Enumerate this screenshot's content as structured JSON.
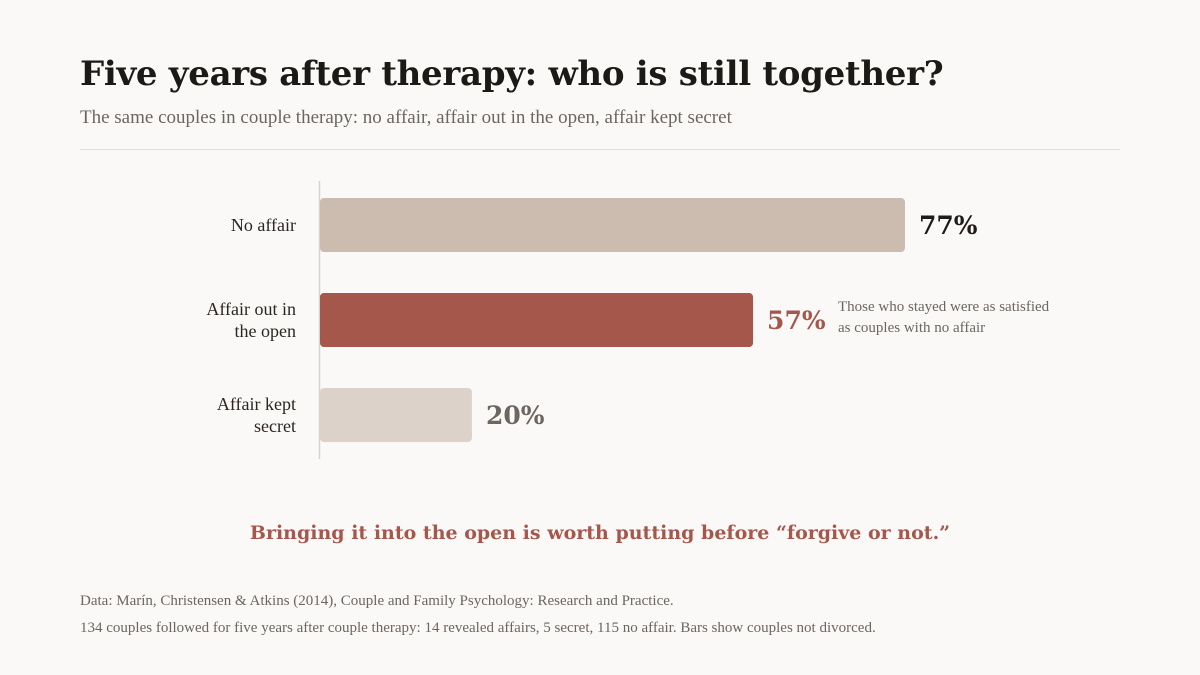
{
  "title": "Five years after therapy: who is still together?",
  "subtitle": "The same couples in couple therapy: no affair, affair out in the open, affair kept secret",
  "chart_data": {
    "type": "bar",
    "orientation": "horizontal",
    "categories": [
      [
        "No affair"
      ],
      [
        "Affair out in",
        "the open"
      ],
      [
        "Affair kept",
        "secret"
      ]
    ],
    "values": [
      77,
      57,
      20
    ],
    "value_labels": [
      "77%",
      "57%",
      "20%"
    ],
    "unit": "%",
    "xlim": [
      0,
      100
    ],
    "grid": false,
    "colors": [
      "#ccbcb0",
      "#a5574c",
      "#dcd2ca"
    ],
    "label_colors": [
      "#1e1b18",
      "#a5574c",
      "#6b6660"
    ],
    "highlight_index": 1,
    "annotation": {
      "series_index": 1,
      "lines": [
        "Those who stayed were as satisfied",
        "as couples with no affair"
      ]
    }
  },
  "takeaway": "Bringing it into the open is worth putting before “forgive or not.”",
  "source": {
    "line1": "Data: Marín, Christensen & Atkins (2014), Couple and Family Psychology: Research and Practice.",
    "line2": "134 couples followed for five years after couple therapy: 14 revealed affairs, 5 secret, 115 no affair. Bars show couples not divorced."
  }
}
